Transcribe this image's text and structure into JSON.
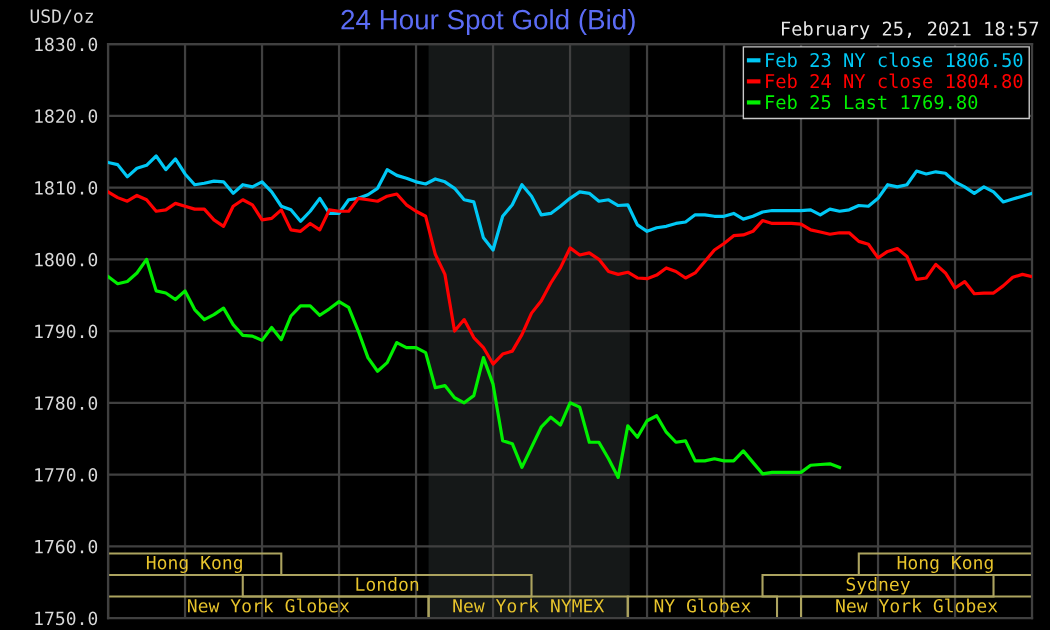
{
  "chart_data": {
    "type": "line",
    "title": "24 Hour Spot Gold (Bid)",
    "subtitle": "February 25, 2021 18:57",
    "ylabel": "USD/oz",
    "categories": [
      null,
      null,
      null,
      null,
      null,
      null,
      null,
      null,
      null,
      null,
      null,
      null,
      null,
      null,
      null,
      null,
      null,
      null,
      null,
      null,
      null,
      null,
      null,
      null,
      null,
      null,
      null,
      null,
      null,
      null,
      null,
      null,
      null,
      null,
      null,
      null,
      null,
      null,
      null,
      null,
      null,
      null,
      null,
      null,
      null,
      null,
      null,
      null,
      null,
      null,
      null,
      null,
      null,
      null,
      null,
      null,
      null,
      null,
      null,
      null,
      null,
      null,
      null,
      null,
      null,
      null,
      null,
      null,
      null,
      null,
      null,
      null,
      null,
      null,
      null,
      null,
      null,
      null,
      null,
      null,
      null,
      null,
      null,
      null,
      null,
      null,
      null,
      null,
      null,
      null,
      null,
      null,
      null,
      null,
      null,
      null,
      null
    ],
    "series": [
      {
        "name": "Feb 23 NY close 1806.50",
        "color": "#00c8f5",
        "values": [
          1813.5,
          1813.2,
          1811.5,
          1812.7,
          1813.1,
          1814.4,
          1812.5,
          1814.0,
          1811.9,
          1810.4,
          1810.6,
          1810.9,
          1810.8,
          1809.2,
          1810.4,
          1810.1,
          1810.8,
          1809.4,
          1807.4,
          1806.9,
          1805.3,
          1806.7,
          1808.5,
          1806.4,
          1806.4,
          1808.3,
          1808.5,
          1809.0,
          1809.9,
          1812.5,
          1811.7,
          1811.3,
          1810.8,
          1810.5,
          1811.2,
          1810.8,
          1809.9,
          1808.3,
          1808.0,
          1803.0,
          1801.3,
          1806.0,
          1807.6,
          1810.4,
          1808.8,
          1806.2,
          1806.4,
          1807.4,
          1808.5,
          1809.4,
          1809.2,
          1808.1,
          1808.3,
          1807.5,
          1807.6,
          1804.8,
          1803.9,
          1804.4,
          1804.6,
          1805.0,
          1805.2,
          1806.2,
          1806.2,
          1806.0,
          1806.0,
          1806.4,
          1805.6,
          1806.0,
          1806.6,
          1806.8,
          1806.8,
          1806.8,
          1806.8,
          1806.9,
          1806.2,
          1807.0,
          1806.7,
          1806.9,
          1807.5,
          1807.4,
          1808.5,
          1810.4,
          1810.1,
          1810.4,
          1812.3,
          1811.9,
          1812.2,
          1812.0,
          1810.8,
          1810.1,
          1809.2,
          1810.1,
          1809.4,
          1808.0,
          1808.4,
          1808.8,
          1809.2
        ]
      },
      {
        "name": "Feb 24 NY close 1804.80",
        "color": "#ff0000",
        "values": [
          1809.4,
          1808.6,
          1808.1,
          1808.9,
          1808.3,
          1806.7,
          1806.9,
          1807.8,
          1807.4,
          1807.0,
          1807.0,
          1805.5,
          1804.6,
          1807.4,
          1808.3,
          1807.6,
          1805.5,
          1805.7,
          1806.9,
          1804.1,
          1803.9,
          1805.0,
          1804.1,
          1806.9,
          1806.7,
          1806.7,
          1808.5,
          1808.3,
          1808.1,
          1808.8,
          1809.1,
          1807.6,
          1806.7,
          1806.0,
          1800.7,
          1797.9,
          1790.0,
          1791.6,
          1789.1,
          1787.7,
          1785.4,
          1786.8,
          1787.2,
          1789.5,
          1792.5,
          1794.2,
          1796.7,
          1798.8,
          1801.6,
          1800.6,
          1800.9,
          1800.0,
          1798.3,
          1797.9,
          1798.2,
          1797.4,
          1797.3,
          1797.8,
          1798.8,
          1798.3,
          1797.4,
          1798.1,
          1799.7,
          1801.3,
          1802.2,
          1803.3,
          1803.4,
          1803.9,
          1805.4,
          1805.0,
          1805.0,
          1805.0,
          1804.9,
          1804.1,
          1803.8,
          1803.5,
          1803.7,
          1803.7,
          1802.5,
          1802.1,
          1800.2,
          1801.1,
          1801.5,
          1800.4,
          1797.2,
          1797.4,
          1799.3,
          1798.1,
          1796.0,
          1796.9,
          1795.2,
          1795.3,
          1795.3,
          1796.3,
          1797.5,
          1797.9,
          1797.6
        ]
      },
      {
        "name": "Feb 25 Last 1769.80",
        "color": "#00f000",
        "values": [
          1797.6,
          1796.6,
          1796.9,
          1798.1,
          1800.0,
          1795.6,
          1795.3,
          1794.4,
          1795.6,
          1793.0,
          1791.6,
          1792.3,
          1793.2,
          1790.9,
          1789.4,
          1789.3,
          1788.7,
          1790.5,
          1788.8,
          1792.1,
          1793.5,
          1793.5,
          1792.2,
          1793.1,
          1794.1,
          1793.3,
          1790.0,
          1786.3,
          1784.4,
          1785.6,
          1788.4,
          1787.7,
          1787.7,
          1787.0,
          1782.1,
          1782.4,
          1780.7,
          1780.0,
          1781.0,
          1786.3,
          1782.6,
          1774.7,
          1774.3,
          1771.0,
          1773.8,
          1776.6,
          1778.0,
          1776.9,
          1780.0,
          1779.4,
          1774.5,
          1774.5,
          1772.2,
          1769.6,
          1776.8,
          1775.2,
          1777.5,
          1778.2,
          1775.9,
          1774.5,
          1774.7,
          1771.9,
          1771.9,
          1772.2,
          1771.9,
          1771.9,
          1773.3,
          1771.7,
          1770.1,
          1770.3,
          1770.3,
          1770.3,
          1770.3,
          1771.3,
          1771.4,
          1771.5,
          1771.0,
          null,
          null,
          null,
          null,
          null,
          null,
          null,
          null,
          null,
          null,
          null,
          null,
          null,
          null,
          null,
          null,
          null,
          null,
          null,
          null
        ]
      }
    ],
    "ylim": [
      1750,
      1830
    ],
    "yticks": [
      {
        "value": 1750,
        "label": "1750.0"
      },
      {
        "value": 1760,
        "label": "1760.0"
      },
      {
        "value": 1770,
        "label": "1770.0"
      },
      {
        "value": 1780,
        "label": "1780.0"
      },
      {
        "value": 1790,
        "label": "1790.0"
      },
      {
        "value": 1800,
        "label": "1800.0"
      },
      {
        "value": 1810,
        "label": "1810.0"
      },
      {
        "value": 1820,
        "label": "1820.0"
      },
      {
        "value": 1830,
        "label": "1830.0"
      }
    ],
    "grid": true,
    "legend": "top right",
    "tick_labels": "y",
    "annotations": [
      "Hong Kong",
      "Hong Kong",
      "London",
      "Sydney",
      "New York Globex",
      "New York NYMEX",
      "NY Globex",
      "New York Globex"
    ]
  }
}
